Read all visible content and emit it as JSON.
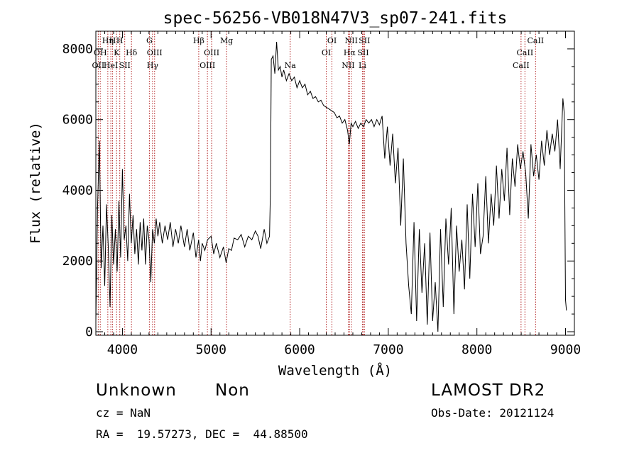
{
  "chart_data": {
    "type": "line",
    "title": "spec-56256-VB018N47V3_sp07-241.fits",
    "xlabel": "Wavelength (Å)",
    "ylabel": "Flux (relative)",
    "xlim": [
      3700,
      9100
    ],
    "ylim": [
      -100,
      8500
    ],
    "x_ticks": [
      4000,
      5000,
      6000,
      7000,
      8000,
      9000
    ],
    "y_ticks": [
      0,
      2000,
      4000,
      6000,
      8000
    ],
    "grid": false,
    "line_color": "#000000",
    "marker_color": "#b22222",
    "series": [
      {
        "values": [
          [
            3700,
            300
          ],
          [
            3720,
            3600
          ],
          [
            3740,
            5400
          ],
          [
            3760,
            1800
          ],
          [
            3780,
            3000
          ],
          [
            3800,
            1300
          ],
          [
            3820,
            3600
          ],
          [
            3840,
            2400
          ],
          [
            3860,
            700
          ],
          [
            3880,
            3300
          ],
          [
            3900,
            1900
          ],
          [
            3920,
            2900
          ],
          [
            3940,
            1700
          ],
          [
            3960,
            3700
          ],
          [
            3980,
            2100
          ],
          [
            4000,
            4600
          ],
          [
            4020,
            2600
          ],
          [
            4040,
            3000
          ],
          [
            4060,
            2000
          ],
          [
            4080,
            3900
          ],
          [
            4100,
            2500
          ],
          [
            4120,
            3300
          ],
          [
            4140,
            2200
          ],
          [
            4160,
            2900
          ],
          [
            4180,
            1900
          ],
          [
            4200,
            3100
          ],
          [
            4220,
            2300
          ],
          [
            4240,
            3200
          ],
          [
            4260,
            1900
          ],
          [
            4280,
            3000
          ],
          [
            4300,
            2600
          ],
          [
            4320,
            1400
          ],
          [
            4340,
            2900
          ],
          [
            4360,
            2500
          ],
          [
            4380,
            3200
          ],
          [
            4400,
            2700
          ],
          [
            4420,
            3100
          ],
          [
            4450,
            2500
          ],
          [
            4480,
            3000
          ],
          [
            4510,
            2600
          ],
          [
            4540,
            3100
          ],
          [
            4570,
            2400
          ],
          [
            4600,
            2900
          ],
          [
            4630,
            2500
          ],
          [
            4660,
            3000
          ],
          [
            4700,
            2400
          ],
          [
            4730,
            2900
          ],
          [
            4760,
            2300
          ],
          [
            4800,
            2800
          ],
          [
            4830,
            2100
          ],
          [
            4860,
            2600
          ],
          [
            4880,
            2000
          ],
          [
            4900,
            2500
          ],
          [
            4930,
            2300
          ],
          [
            4960,
            2600
          ],
          [
            5000,
            2700
          ],
          [
            5030,
            2200
          ],
          [
            5060,
            2500
          ],
          [
            5100,
            2100
          ],
          [
            5140,
            2400
          ],
          [
            5170,
            1950
          ],
          [
            5200,
            2350
          ],
          [
            5230,
            2300
          ],
          [
            5260,
            2650
          ],
          [
            5300,
            2600
          ],
          [
            5340,
            2750
          ],
          [
            5380,
            2400
          ],
          [
            5420,
            2700
          ],
          [
            5460,
            2600
          ],
          [
            5500,
            2850
          ],
          [
            5530,
            2700
          ],
          [
            5560,
            2350
          ],
          [
            5600,
            2900
          ],
          [
            5630,
            2500
          ],
          [
            5660,
            2700
          ],
          [
            5670,
            4000
          ],
          [
            5680,
            7700
          ],
          [
            5700,
            7800
          ],
          [
            5720,
            7300
          ],
          [
            5740,
            8200
          ],
          [
            5760,
            7400
          ],
          [
            5780,
            7500
          ],
          [
            5800,
            7200
          ],
          [
            5820,
            7400
          ],
          [
            5850,
            7100
          ],
          [
            5880,
            7300
          ],
          [
            5910,
            7100
          ],
          [
            5940,
            7200
          ],
          [
            5970,
            6900
          ],
          [
            6000,
            7100
          ],
          [
            6030,
            6900
          ],
          [
            6060,
            7000
          ],
          [
            6090,
            6700
          ],
          [
            6120,
            6800
          ],
          [
            6150,
            6600
          ],
          [
            6180,
            6650
          ],
          [
            6210,
            6500
          ],
          [
            6240,
            6550
          ],
          [
            6270,
            6400
          ],
          [
            6300,
            6350
          ],
          [
            6330,
            6300
          ],
          [
            6360,
            6250
          ],
          [
            6390,
            6200
          ],
          [
            6420,
            6050
          ],
          [
            6450,
            6100
          ],
          [
            6480,
            5900
          ],
          [
            6510,
            6000
          ],
          [
            6540,
            5700
          ],
          [
            6560,
            5300
          ],
          [
            6580,
            5900
          ],
          [
            6600,
            5800
          ],
          [
            6630,
            5950
          ],
          [
            6660,
            5750
          ],
          [
            6690,
            5900
          ],
          [
            6720,
            5800
          ],
          [
            6750,
            6000
          ],
          [
            6780,
            5900
          ],
          [
            6810,
            6000
          ],
          [
            6840,
            5800
          ],
          [
            6870,
            6000
          ],
          [
            6900,
            5850
          ],
          [
            6930,
            6100
          ],
          [
            6960,
            4900
          ],
          [
            6990,
            5800
          ],
          [
            7020,
            4700
          ],
          [
            7050,
            5600
          ],
          [
            7080,
            4200
          ],
          [
            7110,
            5200
          ],
          [
            7140,
            3000
          ],
          [
            7170,
            4900
          ],
          [
            7200,
            2500
          ],
          [
            7230,
            1300
          ],
          [
            7260,
            500
          ],
          [
            7290,
            3100
          ],
          [
            7320,
            300
          ],
          [
            7350,
            2900
          ],
          [
            7380,
            1100
          ],
          [
            7410,
            2500
          ],
          [
            7440,
            200
          ],
          [
            7470,
            2800
          ],
          [
            7500,
            300
          ],
          [
            7530,
            1400
          ],
          [
            7560,
            0
          ],
          [
            7590,
            2900
          ],
          [
            7620,
            700
          ],
          [
            7650,
            3200
          ],
          [
            7680,
            1900
          ],
          [
            7710,
            3500
          ],
          [
            7740,
            500
          ],
          [
            7770,
            3000
          ],
          [
            7800,
            1700
          ],
          [
            7830,
            2600
          ],
          [
            7860,
            1200
          ],
          [
            7890,
            3600
          ],
          [
            7920,
            1500
          ],
          [
            7950,
            3900
          ],
          [
            7980,
            2400
          ],
          [
            8010,
            4200
          ],
          [
            8040,
            2200
          ],
          [
            8070,
            2700
          ],
          [
            8100,
            4400
          ],
          [
            8130,
            2500
          ],
          [
            8160,
            3900
          ],
          [
            8190,
            3000
          ],
          [
            8220,
            4700
          ],
          [
            8250,
            3200
          ],
          [
            8280,
            4600
          ],
          [
            8310,
            3700
          ],
          [
            8340,
            5200
          ],
          [
            8370,
            3300
          ],
          [
            8400,
            4900
          ],
          [
            8430,
            4100
          ],
          [
            8460,
            5300
          ],
          [
            8490,
            4600
          ],
          [
            8520,
            5100
          ],
          [
            8550,
            4500
          ],
          [
            8580,
            3200
          ],
          [
            8610,
            5300
          ],
          [
            8640,
            4400
          ],
          [
            8670,
            5000
          ],
          [
            8700,
            4300
          ],
          [
            8730,
            5400
          ],
          [
            8760,
            4700
          ],
          [
            8790,
            5700
          ],
          [
            8820,
            5000
          ],
          [
            8850,
            5600
          ],
          [
            8880,
            5100
          ],
          [
            8910,
            6000
          ],
          [
            8940,
            4600
          ],
          [
            8970,
            6600
          ],
          [
            8985,
            6200
          ],
          [
            9000,
            900
          ],
          [
            9010,
            600
          ]
        ]
      }
    ],
    "line_markers": [
      {
        "wavelength": 3727,
        "label": "OII",
        "row": 2
      },
      {
        "wavelength": 3750,
        "label": "OH",
        "row": 1
      },
      {
        "wavelength": 3835,
        "label": "Hη",
        "row": 0
      },
      {
        "wavelength": 3869,
        "label": "HeI",
        "row": 2
      },
      {
        "wavelength": 3889,
        "label": "H",
        "row": 0
      },
      {
        "wavelength": 3934,
        "label": "K",
        "row": 1
      },
      {
        "wavelength": 3970,
        "label": "H",
        "row": 0
      },
      {
        "wavelength": 4026,
        "label": "SII",
        "row": 2
      },
      {
        "wavelength": 4102,
        "label": "Hδ",
        "row": 1
      },
      {
        "wavelength": 4304,
        "label": "G",
        "row": 0
      },
      {
        "wavelength": 4340,
        "label": "Hγ",
        "row": 2
      },
      {
        "wavelength": 4363,
        "label": "OIII",
        "row": 1
      },
      {
        "wavelength": 4861,
        "label": "Hβ",
        "row": 0
      },
      {
        "wavelength": 4959,
        "label": "OIII",
        "row": 2
      },
      {
        "wavelength": 5007,
        "label": "OIII",
        "row": 1
      },
      {
        "wavelength": 5175,
        "label": "Mg",
        "row": 0
      },
      {
        "wavelength": 5893,
        "label": "Na",
        "row": 2
      },
      {
        "wavelength": 6300,
        "label": "OI",
        "row": 1
      },
      {
        "wavelength": 6364,
        "label": "OI",
        "row": 0
      },
      {
        "wavelength": 6548,
        "label": "NII",
        "row": 2
      },
      {
        "wavelength": 6563,
        "label": "Hα",
        "row": 1
      },
      {
        "wavelength": 6583,
        "label": "NII",
        "row": 0
      },
      {
        "wavelength": 6708,
        "label": "Li",
        "row": 2
      },
      {
        "wavelength": 6716,
        "label": "SII",
        "row": 1
      },
      {
        "wavelength": 6731,
        "label": "SII",
        "row": 0
      },
      {
        "wavelength": 8498,
        "label": "CaII",
        "row": 2
      },
      {
        "wavelength": 8542,
        "label": "CaII",
        "row": 1
      },
      {
        "wavelength": 8662,
        "label": "CaII",
        "row": 0
      }
    ]
  },
  "info": {
    "object_class": "Unknown",
    "object_subclass": "Non",
    "survey": "LAMOST DR2",
    "redshift": "cz = NaN",
    "obs_date": "Obs-Date: 20121124",
    "coordinates": "RA =  19.57273, DEC =  44.88500"
  }
}
